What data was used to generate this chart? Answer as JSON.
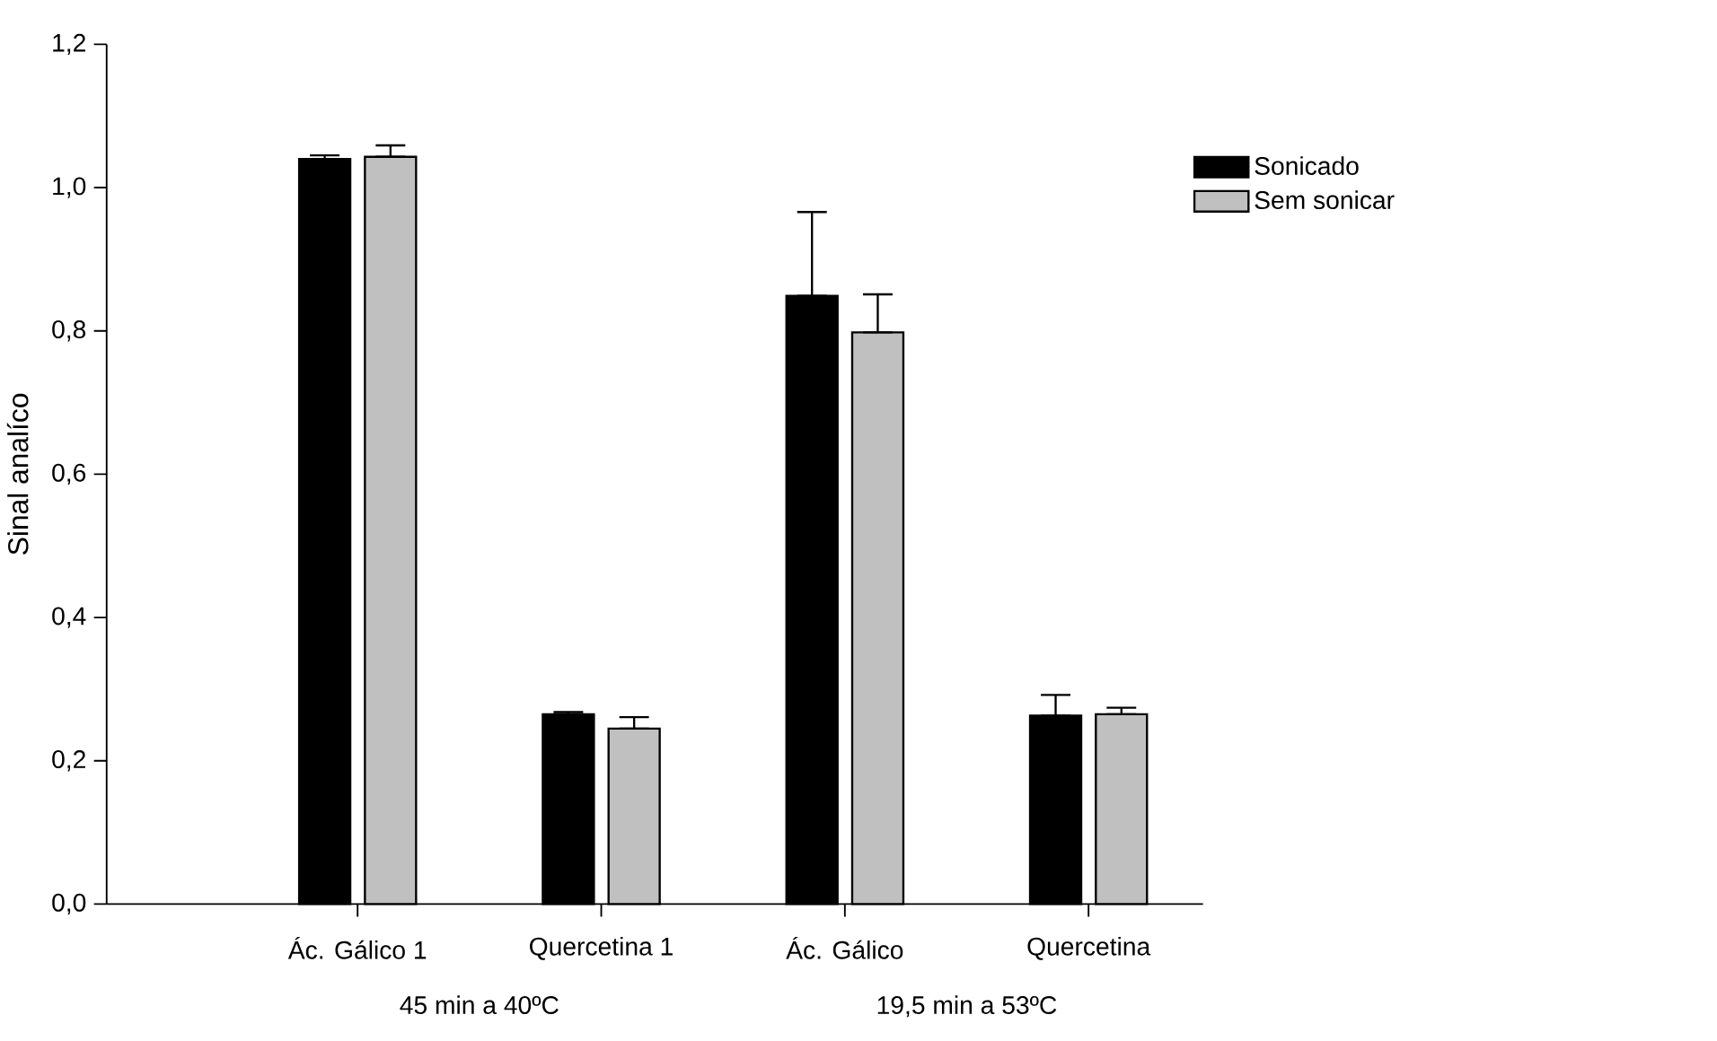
{
  "chart_data": {
    "type": "bar",
    "ylabel": "Sinal analíco",
    "categories": [
      "Ác. Gálico 1",
      "Quercetina 1",
      "Ác. Gálico",
      "Quercetina"
    ],
    "series": [
      {
        "name": "Sonicado",
        "color": "#000000",
        "values": [
          1.04,
          0.265,
          0.849,
          0.263
        ],
        "errors": [
          [
            1.04,
            1.045
          ],
          [
            0.265,
            0.268
          ],
          [
            0.849,
            0.966
          ],
          [
            0.263,
            0.292
          ]
        ]
      },
      {
        "name": "Sem sonicar",
        "color": "#c0c0c0",
        "values": [
          1.043,
          0.245,
          0.798,
          0.265
        ],
        "errors": [
          [
            1.043,
            1.059
          ],
          [
            0.245,
            0.261
          ],
          [
            0.798,
            0.851
          ],
          [
            0.265,
            0.274
          ]
        ]
      }
    ],
    "ylim": [
      0,
      1.2
    ],
    "yticks": [
      {
        "value": 0,
        "label": "0,0"
      },
      {
        "value": 0.2,
        "label": "0,2"
      },
      {
        "value": 0.4,
        "label": "0,4"
      },
      {
        "value": 0.6,
        "label": "0,6"
      },
      {
        "value": 0.8,
        "label": "0,8"
      },
      {
        "value": 1.0,
        "label": "1,0"
      },
      {
        "value": 1.2,
        "label": "1,2"
      }
    ],
    "legend": "top right",
    "grid": false,
    "annotations": [
      "45 min a 40ºC",
      "19,5 min a 53ºC"
    ]
  }
}
